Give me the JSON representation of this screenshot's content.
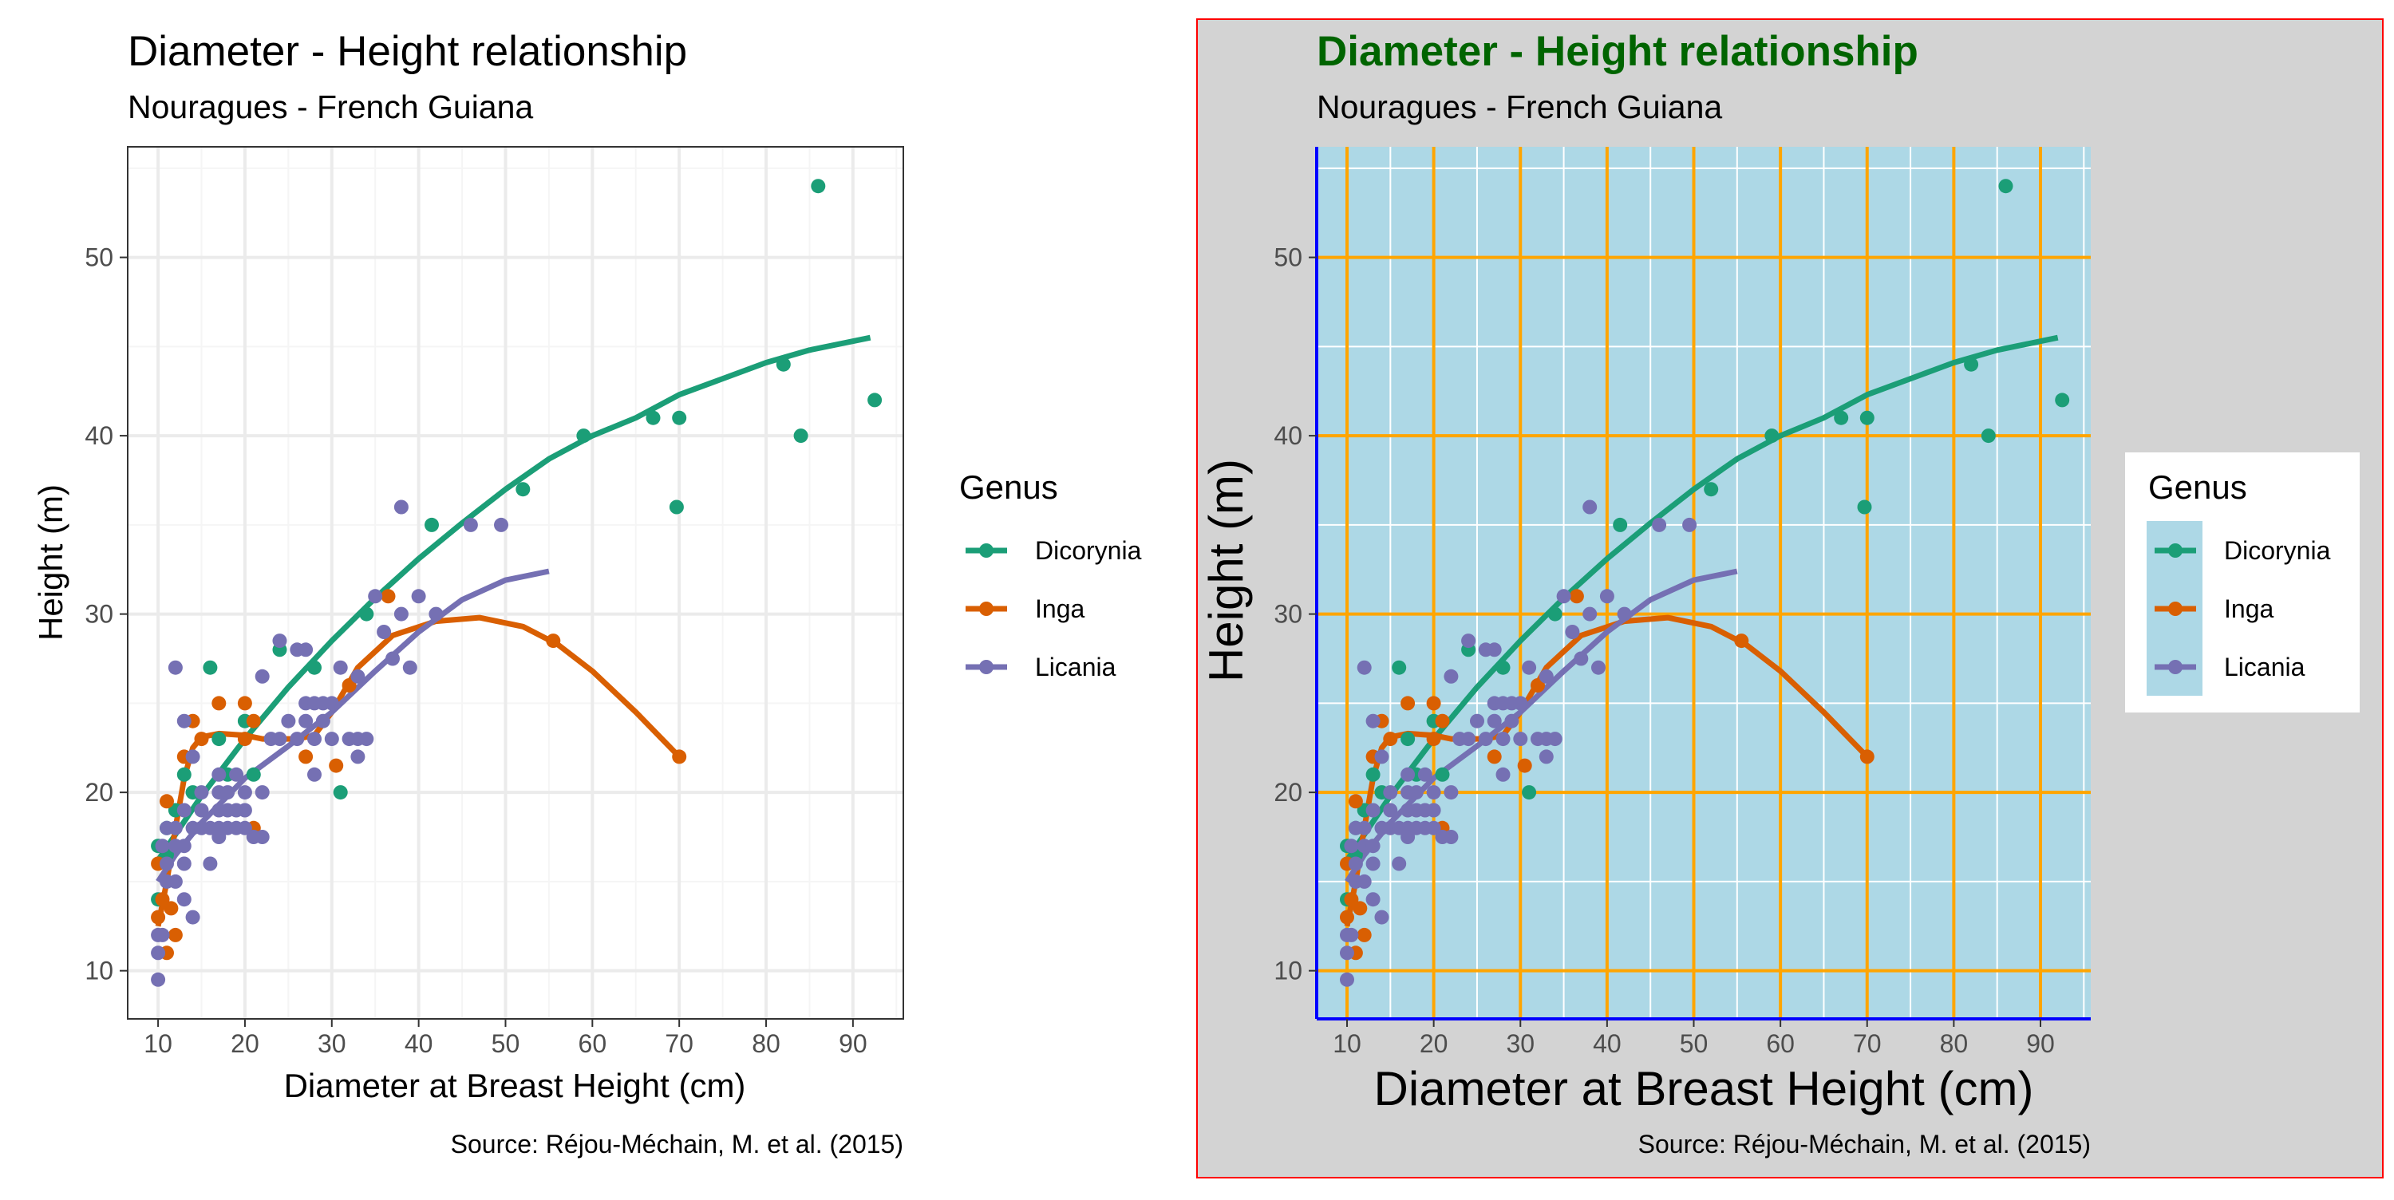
{
  "figure": {
    "panels": [
      {
        "title": "Diameter - Height relationship",
        "subtitle": "Nouragues - French Guiana",
        "xlabel": "Diameter at Breast Height (cm)",
        "ylabel": "Height (m)",
        "caption": "Source: Réjou-Méchain, M. et al. (2015)",
        "legend_title": "Genus"
      },
      {
        "title": "Diameter - Height relationship",
        "subtitle": "Nouragues - French Guiana",
        "xlabel": "Diameter at Breast Height (cm)",
        "ylabel": "Height (m)",
        "caption": "Source: Réjou-Méchain, M. et al. (2015)",
        "legend_title": "Genus"
      }
    ],
    "theme_default": {
      "background": "#ffffff",
      "panel_background": "#ffffff",
      "major_grid": "#ebebeb",
      "minor_grid": "#f5f5f5",
      "panel_border": "#333333",
      "text": "#000000",
      "axis_text": "#4d4d4d"
    },
    "theme_custom": {
      "plot_background": "#d3d3d3",
      "plot_border": "#ff0000",
      "panel_background": "#add8e6",
      "major_grid": "#ffa500",
      "minor_grid": "#ffffff",
      "axis_line": "#0000ff",
      "title_color": "#006400",
      "legend_background": "#ffffff",
      "legend_key_background": "#add8e6"
    }
  },
  "chart_data": {
    "type": "scatter",
    "title": "Diameter - Height relationship",
    "subtitle": "Nouragues - French Guiana",
    "caption": "Source: Réjou-Méchain, M. et al. (2015)",
    "xlabel": "Diameter at Breast Height (cm)",
    "ylabel": "Height (m)",
    "xlim": [
      6.5,
      95.8
    ],
    "ylim": [
      7.3,
      56.2
    ],
    "xticks": [
      10,
      20,
      30,
      40,
      50,
      60,
      70,
      80,
      90
    ],
    "yticks": [
      10,
      20,
      30,
      40,
      50
    ],
    "grid": true,
    "legend": {
      "title": "Genus",
      "position": "right",
      "entries": [
        "Dicorynia",
        "Inga",
        "Licania"
      ]
    },
    "series": [
      {
        "name": "Dicorynia",
        "color": "#1b9e77",
        "points": [
          [
            10,
            14
          ],
          [
            10,
            17
          ],
          [
            11,
            16.5
          ],
          [
            11,
            18
          ],
          [
            12,
            19
          ],
          [
            13,
            21
          ],
          [
            14,
            20
          ],
          [
            16,
            27
          ],
          [
            17,
            23
          ],
          [
            18,
            21
          ],
          [
            20,
            24
          ],
          [
            21,
            21
          ],
          [
            24,
            28
          ],
          [
            28,
            27
          ],
          [
            31,
            20
          ],
          [
            34,
            30
          ],
          [
            41.5,
            35
          ],
          [
            52,
            37
          ],
          [
            59,
            40
          ],
          [
            67,
            41
          ],
          [
            69.7,
            36
          ],
          [
            70,
            41
          ],
          [
            82,
            44
          ],
          [
            84,
            40
          ],
          [
            86,
            54
          ],
          [
            92.5,
            42
          ]
        ],
        "fit": [
          [
            10,
            16.2
          ],
          [
            15,
            19.8
          ],
          [
            20,
            23.0
          ],
          [
            25,
            25.9
          ],
          [
            30,
            28.5
          ],
          [
            35,
            30.9
          ],
          [
            40,
            33.1
          ],
          [
            45,
            35.1
          ],
          [
            50,
            37.0
          ],
          [
            55,
            38.7
          ],
          [
            60,
            40.0
          ],
          [
            65,
            41.0
          ],
          [
            70,
            42.3
          ],
          [
            75,
            43.2
          ],
          [
            80,
            44.1
          ],
          [
            85,
            44.8
          ],
          [
            92,
            45.5
          ]
        ]
      },
      {
        "name": "Inga",
        "color": "#d95f02",
        "points": [
          [
            10,
            13
          ],
          [
            10,
            16
          ],
          [
            10.5,
            14
          ],
          [
            11,
            11
          ],
          [
            11,
            19.5
          ],
          [
            11.5,
            13.5
          ],
          [
            12,
            12
          ],
          [
            13,
            22
          ],
          [
            14,
            24
          ],
          [
            15,
            23
          ],
          [
            17,
            25
          ],
          [
            20,
            25
          ],
          [
            20,
            23
          ],
          [
            21,
            18
          ],
          [
            21,
            24
          ],
          [
            27,
            22
          ],
          [
            30.5,
            21.5
          ],
          [
            32,
            26
          ],
          [
            36.5,
            31
          ],
          [
            55.5,
            28.5
          ],
          [
            70,
            22
          ]
        ],
        "fit": [
          [
            10,
            12.5
          ],
          [
            11,
            15.0
          ],
          [
            12,
            18.0
          ],
          [
            13,
            20.8
          ],
          [
            14,
            22.5
          ],
          [
            15,
            23.1
          ],
          [
            17,
            23.3
          ],
          [
            20,
            23.2
          ],
          [
            22,
            23.0
          ],
          [
            24,
            23.0
          ],
          [
            26,
            23.0
          ],
          [
            28,
            23.2
          ],
          [
            30,
            24.5
          ],
          [
            33,
            27.0
          ],
          [
            37,
            28.8
          ],
          [
            42,
            29.6
          ],
          [
            47,
            29.8
          ],
          [
            52,
            29.3
          ],
          [
            56,
            28.3
          ],
          [
            60,
            26.8
          ],
          [
            65,
            24.5
          ],
          [
            70,
            22.0
          ]
        ]
      },
      {
        "name": "Licania",
        "color": "#7570b3",
        "points": [
          [
            10,
            9.5
          ],
          [
            10,
            11
          ],
          [
            10,
            12
          ],
          [
            10.5,
            12
          ],
          [
            10.5,
            17
          ],
          [
            11,
            15
          ],
          [
            11,
            16
          ],
          [
            11,
            18
          ],
          [
            12,
            15
          ],
          [
            12,
            17
          ],
          [
            12,
            18
          ],
          [
            12,
            27
          ],
          [
            13,
            14
          ],
          [
            13,
            16
          ],
          [
            13,
            17
          ],
          [
            13,
            19
          ],
          [
            13,
            24
          ],
          [
            14,
            13
          ],
          [
            14,
            18
          ],
          [
            14,
            22
          ],
          [
            15,
            18
          ],
          [
            15,
            19
          ],
          [
            15,
            20
          ],
          [
            16,
            16
          ],
          [
            16,
            18
          ],
          [
            17,
            17.5
          ],
          [
            17,
            18
          ],
          [
            17,
            19
          ],
          [
            17,
            20
          ],
          [
            17,
            21
          ],
          [
            18,
            18
          ],
          [
            18,
            19
          ],
          [
            18,
            20
          ],
          [
            19,
            18
          ],
          [
            19,
            19
          ],
          [
            19,
            21
          ],
          [
            20,
            18
          ],
          [
            20,
            19
          ],
          [
            20,
            20
          ],
          [
            21,
            17.5
          ],
          [
            22,
            17.5
          ],
          [
            22,
            20
          ],
          [
            22,
            26.5
          ],
          [
            23,
            23
          ],
          [
            24,
            23
          ],
          [
            24,
            28.5
          ],
          [
            25,
            24
          ],
          [
            26,
            23
          ],
          [
            26,
            28
          ],
          [
            27,
            24
          ],
          [
            27,
            25
          ],
          [
            27,
            28
          ],
          [
            28,
            21
          ],
          [
            28,
            23
          ],
          [
            28,
            25
          ],
          [
            29,
            24
          ],
          [
            29,
            25
          ],
          [
            30,
            23
          ],
          [
            30,
            25
          ],
          [
            31,
            27
          ],
          [
            32,
            23
          ],
          [
            33,
            22
          ],
          [
            33,
            23
          ],
          [
            33,
            26.5
          ],
          [
            34,
            23
          ],
          [
            35,
            31
          ],
          [
            36,
            29
          ],
          [
            37,
            27.5
          ],
          [
            38,
            36
          ],
          [
            38,
            30
          ],
          [
            39,
            27
          ],
          [
            40,
            31
          ],
          [
            42,
            30
          ],
          [
            46,
            35
          ],
          [
            49.5,
            35
          ]
        ],
        "fit": [
          [
            10,
            15.0
          ],
          [
            12,
            16.5
          ],
          [
            15,
            18.3
          ],
          [
            18,
            19.8
          ],
          [
            20,
            20.8
          ],
          [
            25,
            22.6
          ],
          [
            30,
            24.5
          ],
          [
            35,
            26.8
          ],
          [
            40,
            29.0
          ],
          [
            45,
            30.8
          ],
          [
            50,
            31.9
          ],
          [
            55,
            32.4
          ]
        ]
      }
    ]
  }
}
